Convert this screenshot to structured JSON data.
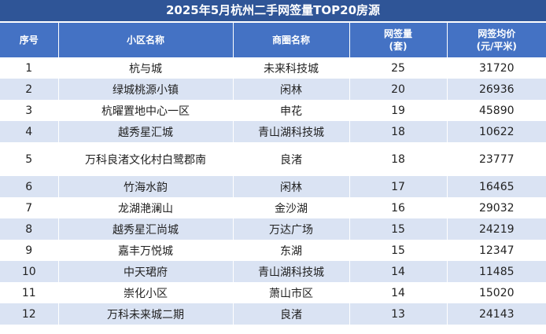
{
  "title": "2025年5月杭州二手网签量TOP20房源",
  "header": {
    "rank": "序号",
    "community": "小区名称",
    "district": "商圈名称",
    "volume_line1": "网签量",
    "volume_line2": "(套)",
    "price_line1": "网签均价",
    "price_line2": "(元/平米)"
  },
  "rows": [
    {
      "rank": "1",
      "community": "杭与城",
      "district": "未来科技城",
      "volume": "25",
      "price": "31720"
    },
    {
      "rank": "2",
      "community": "绿城桃源小镇",
      "district": "闲林",
      "volume": "20",
      "price": "26936"
    },
    {
      "rank": "3",
      "community": "杭曜置地中心一区",
      "district": "申花",
      "volume": "19",
      "price": "45890"
    },
    {
      "rank": "4",
      "community": "越秀星汇城",
      "district": "青山湖科技城",
      "volume": "18",
      "price": "10622"
    },
    {
      "rank": "5",
      "community": "万科良渚文化村白鹭郡南",
      "district": "良渚",
      "volume": "18",
      "price": "23777"
    },
    {
      "rank": "6",
      "community": "竹海水韵",
      "district": "闲林",
      "volume": "17",
      "price": "16465"
    },
    {
      "rank": "7",
      "community": "龙湖滟澜山",
      "district": "金沙湖",
      "volume": "16",
      "price": "29032"
    },
    {
      "rank": "8",
      "community": "越秀星汇尚城",
      "district": "万达广场",
      "volume": "15",
      "price": "24219"
    },
    {
      "rank": "9",
      "community": "嘉丰万悦城",
      "district": "东湖",
      "volume": "15",
      "price": "12347"
    },
    {
      "rank": "10",
      "community": "中天珺府",
      "district": "青山湖科技城",
      "volume": "14",
      "price": "11485"
    },
    {
      "rank": "11",
      "community": "崇化小区",
      "district": "萧山市区",
      "volume": "14",
      "price": "15020"
    },
    {
      "rank": "12",
      "community": "万科未来城二期",
      "district": "良渚",
      "volume": "13",
      "price": "24143"
    }
  ]
}
